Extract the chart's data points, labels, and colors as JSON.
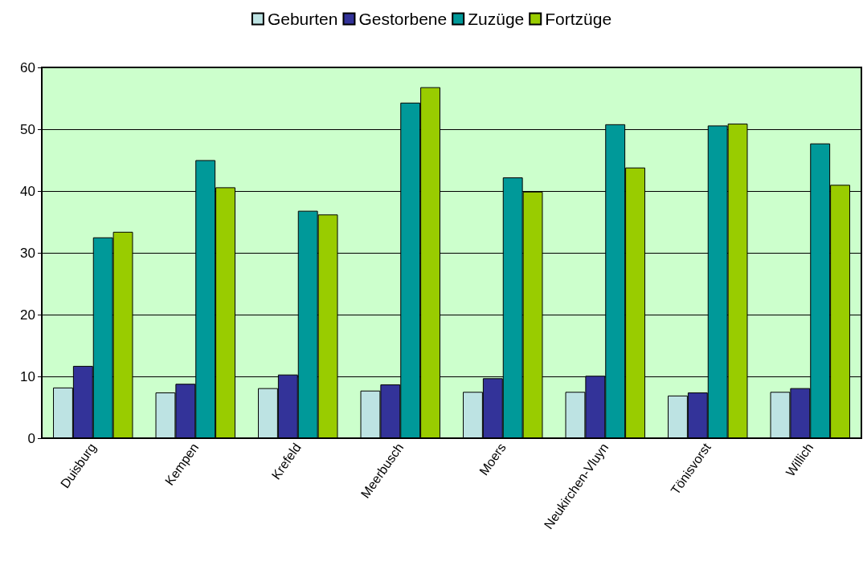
{
  "chart_data": {
    "type": "bar",
    "categories": [
      "Duisburg",
      "Kempen",
      "Krefeld",
      "Meerbusch",
      "Moers",
      "Neukirchen-Vluyn",
      "Tönisvorst",
      "Willich"
    ],
    "series": [
      {
        "name": "Geburten",
        "color": "#bde3e3",
        "values": [
          8.2,
          7.4,
          8.1,
          7.7,
          7.5,
          7.5,
          6.9,
          7.5
        ]
      },
      {
        "name": "Gestorbene",
        "color": "#333399",
        "values": [
          11.7,
          8.8,
          10.3,
          8.7,
          9.7,
          10.1,
          7.4,
          8.1
        ]
      },
      {
        "name": "Zuzüge",
        "color": "#009999",
        "values": [
          32.5,
          45,
          36.8,
          54.3,
          42.2,
          50.8,
          50.6,
          47.7
        ]
      },
      {
        "name": "Fortzüge",
        "color": "#99cc00",
        "values": [
          33.4,
          40.6,
          36.2,
          56.8,
          39.9,
          43.8,
          50.9,
          41
        ]
      }
    ],
    "ylim": [
      0,
      60
    ],
    "yticks": [
      0,
      10,
      20,
      30,
      40,
      50,
      60
    ],
    "grid": "y",
    "legend": "top"
  }
}
